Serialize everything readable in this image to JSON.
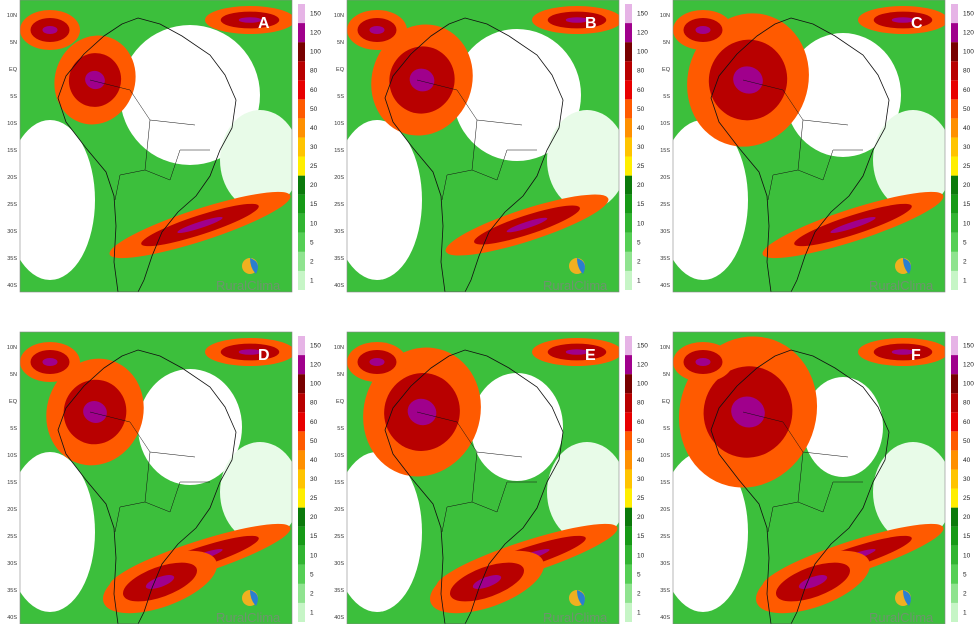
{
  "panels": [
    {
      "letter": "A",
      "watermark": "RuralClima"
    },
    {
      "letter": "B",
      "watermark": "RuralClima"
    },
    {
      "letter": "C",
      "watermark": "RuralClima"
    },
    {
      "letter": "D",
      "watermark": "RuralClima"
    },
    {
      "letter": "E",
      "watermark": "RuralClima"
    },
    {
      "letter": "F",
      "watermark": "RuralClima"
    }
  ],
  "latitude_labels": [
    "10N",
    "5N",
    "EQ",
    "5S",
    "10S",
    "15S",
    "20S",
    "25S",
    "30S",
    "35S",
    "40S"
  ],
  "legend": {
    "ticks": [
      1,
      2,
      5,
      10,
      15,
      20,
      25,
      30,
      40,
      50,
      60,
      80,
      100,
      120,
      150
    ],
    "colors": [
      "#c6f5c6",
      "#8fe38f",
      "#55cf55",
      "#31b531",
      "#169a16",
      "#0b7a0b",
      "#ffee00",
      "#ffc400",
      "#ff9000",
      "#ff5a00",
      "#e80000",
      "#b80000",
      "#780000",
      "#a0008c",
      "#e6b4e6"
    ]
  }
}
